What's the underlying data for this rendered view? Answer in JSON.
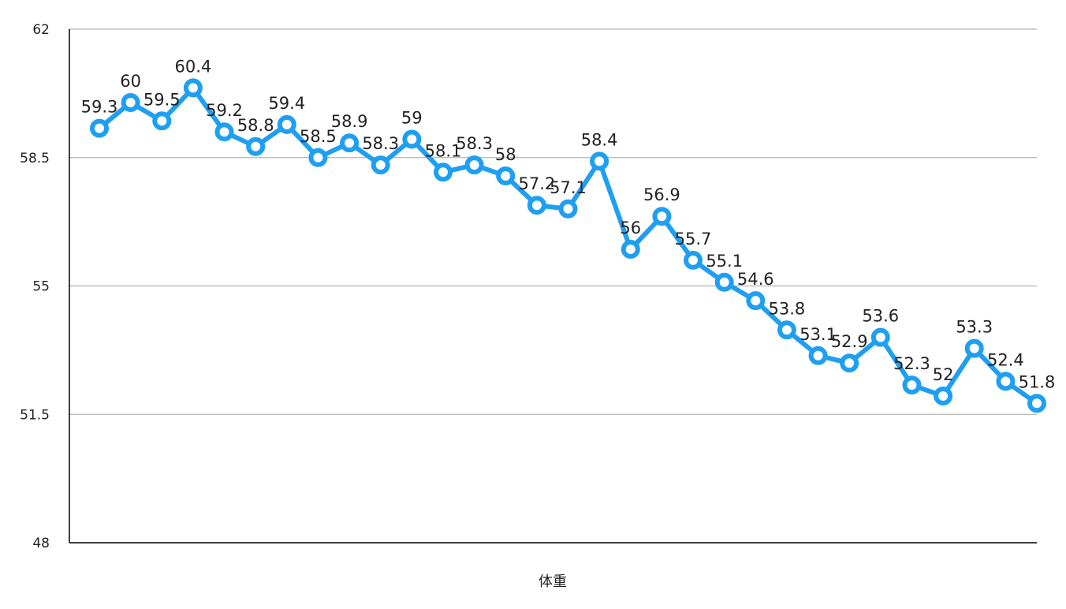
{
  "chart_data": {
    "type": "line",
    "title": "",
    "xlabel": "体重",
    "ylabel": "",
    "ylim": [
      48,
      62
    ],
    "y_ticks": [
      48,
      51.5,
      55,
      58.5,
      62
    ],
    "y_tick_labels": [
      "48",
      "51.5",
      "55",
      "58.5",
      "62"
    ],
    "grid": true,
    "legend": "none",
    "series": [
      {
        "values": [
          59.3,
          60,
          59.5,
          60.4,
          59.2,
          58.8,
          59.4,
          58.5,
          58.9,
          58.3,
          59,
          58.1,
          58.3,
          58,
          57.2,
          57.1,
          58.4,
          56,
          56.9,
          55.7,
          55.1,
          54.6,
          53.8,
          53.1,
          52.9,
          53.6,
          52.3,
          52,
          53.3,
          52.4,
          51.8
        ],
        "labels": [
          "59.3",
          "60",
          "59.5",
          "60.4",
          "59.2",
          "58.8",
          "59.4",
          "58.5",
          "58.9",
          "58.3",
          "59",
          "58.1",
          "58.3",
          "58",
          "57.2",
          "57.1",
          "58.4",
          "56",
          "56.9",
          "55.7",
          "55.1",
          "54.6",
          "53.8",
          "53.1",
          "52.9",
          "53.6",
          "52.3",
          "52",
          "53.3",
          "52.4",
          "51.8"
        ],
        "color": "#1e9ff2"
      }
    ],
    "colors": {
      "line": "#1e9ff2",
      "marker_fill": "#ffffff",
      "grid": "#b5b5b5",
      "axis": "#000000",
      "text": "#222222"
    }
  }
}
